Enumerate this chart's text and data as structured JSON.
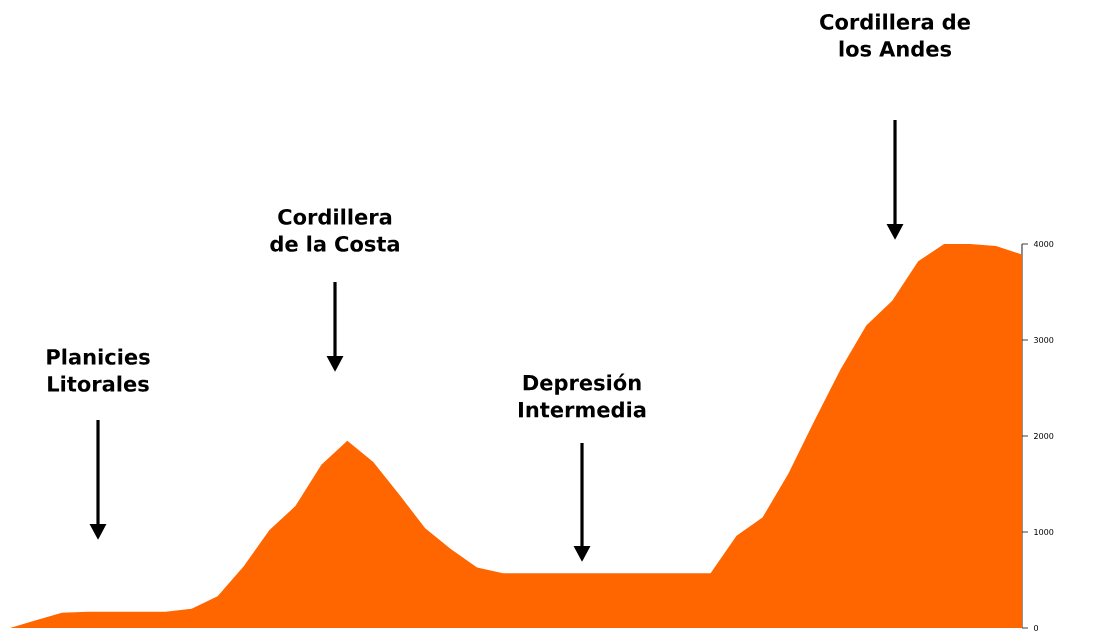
{
  "chart_data": {
    "type": "area",
    "color": "#ff6600",
    "categories": [
      null,
      null,
      null,
      null,
      null,
      null,
      null,
      null,
      null,
      null,
      null,
      null,
      null,
      null,
      null,
      null,
      null,
      null,
      null,
      null,
      null,
      null,
      null,
      null,
      null,
      null,
      null,
      null,
      null,
      null,
      null,
      null,
      null,
      null,
      null,
      null,
      null,
      null,
      null,
      null
    ],
    "values": [
      0,
      80,
      160,
      170,
      170,
      170,
      170,
      200,
      330,
      640,
      1020,
      1270,
      1700,
      1950,
      1730,
      1390,
      1040,
      820,
      630,
      570,
      570,
      570,
      570,
      570,
      570,
      570,
      570,
      570,
      960,
      1150,
      1610,
      2160,
      2690,
      3150,
      3410,
      3820,
      4000,
      4000,
      3980,
      3890
    ],
    "ylim": [
      0,
      4000
    ],
    "yticks": [
      0,
      1000,
      2000,
      3000,
      4000
    ],
    "annotations": [
      "Planicies Litorales",
      "Cordillera de la Costa",
      "Depresión Intermedia",
      "Cordillera de los Andes"
    ]
  }
}
